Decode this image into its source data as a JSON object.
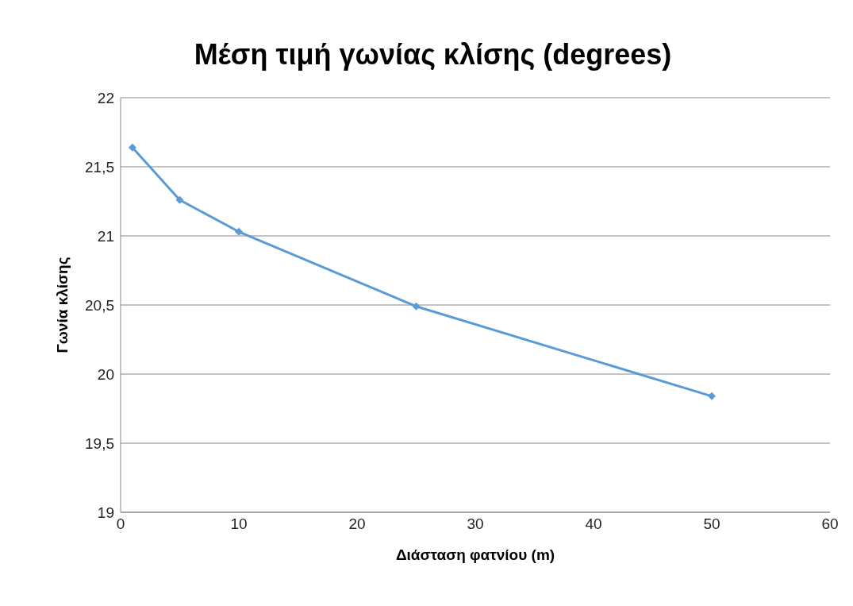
{
  "chart_data": {
    "type": "line",
    "title": "Μέση τιμή γωνίας κλίσης (degrees)",
    "xlabel": "Διάσταση φατνίου (m)",
    "ylabel": "Γωνία κλίσης",
    "x": [
      1,
      5,
      10,
      25,
      50
    ],
    "series": [
      {
        "color": "#5b9bd5",
        "values": [
          21.64,
          21.26,
          21.03,
          20.49,
          19.84
        ]
      }
    ],
    "xlim": [
      0,
      60
    ],
    "xticks": [
      0,
      10,
      20,
      30,
      40,
      50,
      60
    ],
    "ylim": [
      19,
      22
    ],
    "yticks": [
      19,
      {
        "value": 19.5,
        "label": "19,5"
      },
      20,
      {
        "value": 20.5,
        "label": "20,5"
      },
      21,
      {
        "value": 21.5,
        "label": "21,5"
      },
      22
    ],
    "grid": "y",
    "legend": false,
    "marker": "diamond",
    "line_style": "solid"
  }
}
